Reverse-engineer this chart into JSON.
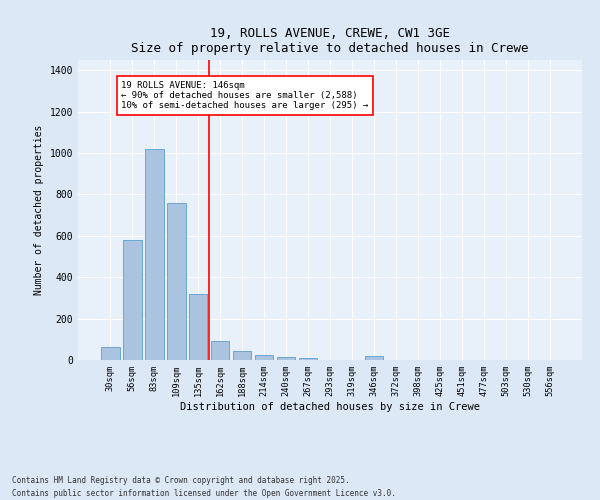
{
  "title1": "19, ROLLS AVENUE, CREWE, CW1 3GE",
  "title2": "Size of property relative to detached houses in Crewe",
  "xlabel": "Distribution of detached houses by size in Crewe",
  "ylabel": "Number of detached properties",
  "categories": [
    "30sqm",
    "56sqm",
    "83sqm",
    "109sqm",
    "135sqm",
    "162sqm",
    "188sqm",
    "214sqm",
    "240sqm",
    "267sqm",
    "293sqm",
    "319sqm",
    "346sqm",
    "372sqm",
    "398sqm",
    "425sqm",
    "451sqm",
    "477sqm",
    "503sqm",
    "530sqm",
    "556sqm"
  ],
  "values": [
    65,
    580,
    1020,
    760,
    320,
    90,
    42,
    22,
    14,
    10,
    0,
    0,
    18,
    0,
    0,
    0,
    0,
    0,
    0,
    0,
    0
  ],
  "bar_color": "#aac4e0",
  "bar_edgecolor": "#5a9fd4",
  "red_line_x": 4.5,
  "annotation_title": "19 ROLLS AVENUE: 146sqm",
  "annotation_line1": "← 90% of detached houses are smaller (2,588)",
  "annotation_line2": "10% of semi-detached houses are larger (295) →",
  "ylim": [
    0,
    1450
  ],
  "yticks": [
    0,
    200,
    400,
    600,
    800,
    1000,
    1200,
    1400
  ],
  "footnote1": "Contains HM Land Registry data © Crown copyright and database right 2025.",
  "footnote2": "Contains public sector information licensed under the Open Government Licence v3.0.",
  "bg_color": "#dce8f5",
  "plot_bg_color": "#e8f0fa"
}
